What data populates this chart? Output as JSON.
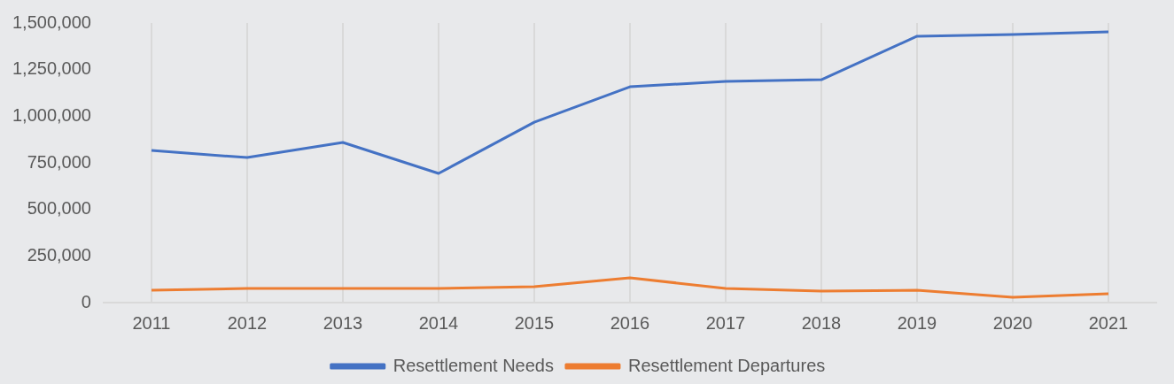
{
  "chart_data": {
    "type": "line",
    "categories": [
      "2011",
      "2012",
      "2013",
      "2014",
      "2015",
      "2016",
      "2017",
      "2018",
      "2019",
      "2020",
      "2021"
    ],
    "series": [
      {
        "name": "Resettlement Needs",
        "color": "#4472c4",
        "values": [
          816000,
          778000,
          859000,
          693000,
          968000,
          1158000,
          1187000,
          1196000,
          1429000,
          1438000,
          1453000
        ]
      },
      {
        "name": "Resettlement Departures",
        "color": "#ed7d31",
        "values": [
          66000,
          76000,
          76000,
          76000,
          85000,
          133000,
          76000,
          62000,
          66000,
          28000,
          47000
        ]
      }
    ],
    "ylim": [
      0,
      1500000
    ],
    "yticks": [
      0,
      {
        "value": 250000,
        "label": "250,000"
      },
      {
        "value": 500000,
        "label": "500,000"
      },
      {
        "value": 750000,
        "label": "750,000"
      },
      {
        "value": 1000000,
        "label": "1,000,000"
      },
      {
        "value": 1250000,
        "label": "1,250,000"
      },
      {
        "value": 1500000,
        "label": "1,500,000"
      }
    ],
    "grid": "x",
    "legend": "bottom",
    "marker": "none",
    "line_style": "solid"
  }
}
